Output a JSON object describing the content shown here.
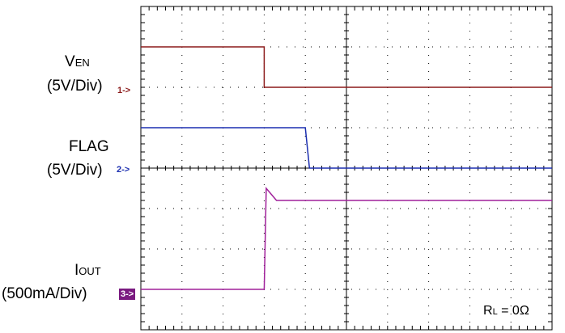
{
  "labels": {
    "ven": {
      "main": "V",
      "sub": "EN",
      "scale": "(5V/Div)"
    },
    "flag": {
      "main": "FLAG",
      "scale": "(5V/Div)"
    },
    "iout": {
      "main": "I",
      "sub": "OUT",
      "scale": "(500mA/Div)"
    },
    "annotation": {
      "main": "R",
      "sub": "L",
      "rest": " = 0Ω"
    }
  },
  "markers": {
    "ch1": "1->",
    "ch2": "2->",
    "ch3": "3->"
  },
  "colors": {
    "ven": "#8b1a1a",
    "flag": "#1c2fb0",
    "iout": "#a0209a",
    "ch3_marker_bg": "#7a1a80"
  },
  "chart_data": {
    "type": "line",
    "grid": true,
    "x_divisions": 10,
    "y_divisions": 8,
    "x_unit": "div",
    "series": [
      {
        "name": "VEN",
        "x": [
          0,
          3.0,
          3.0,
          10
        ],
        "y": [
          7.0,
          7.0,
          6.0,
          6.0
        ]
      },
      {
        "name": "FLAG",
        "x": [
          0,
          4.0,
          4.1,
          10
        ],
        "y": [
          5.0,
          5.0,
          4.0,
          4.0
        ]
      },
      {
        "name": "IOUT",
        "x": [
          0,
          3.0,
          3.05,
          3.3,
          10
        ],
        "y": [
          1.0,
          1.0,
          3.5,
          3.2,
          3.2
        ]
      }
    ]
  }
}
